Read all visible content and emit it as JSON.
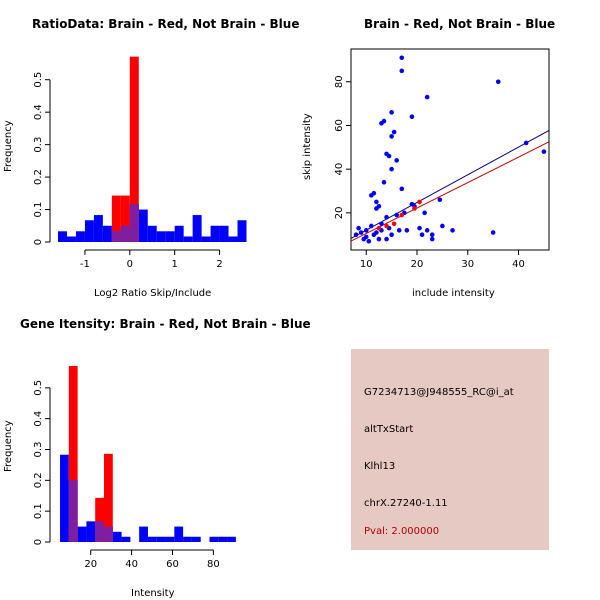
{
  "colors": {
    "red": "#ff0000",
    "blue": "#0000ff",
    "overlap": "#7f1f9f",
    "reg_red": "#cc0000",
    "reg_blue": "#000080",
    "info_bg": "#e6c9c2",
    "pval": "#b0000a"
  },
  "chart_data": [
    {
      "id": "ratio_hist",
      "type": "bar",
      "title": "RatioData: Brain - Red, Not Brain - Blue",
      "xlabel": "Log2 Ratio Skip/Include",
      "ylabel": "Frequency",
      "xlim": [
        -1.6,
        2.5
      ],
      "ylim": [
        0,
        0.57
      ],
      "xticks": [
        -1,
        0,
        1,
        2
      ],
      "yticks": [
        0.0,
        0.1,
        0.2,
        0.3,
        0.4,
        0.5
      ],
      "bin_width": 0.2,
      "series": [
        {
          "name": "Not Brain",
          "color": "blue",
          "start": -1.6,
          "values": [
            0.033,
            0.017,
            0.033,
            0.067,
            0.083,
            0.05,
            0.033,
            0.05,
            0.117,
            0.1,
            0.05,
            0.033,
            0.033,
            0.05,
            0.017,
            0.083,
            0.017,
            0.05,
            0.05,
            0.017,
            0.067
          ]
        },
        {
          "name": "Brain",
          "color": "red",
          "start": -0.4,
          "values": [
            0.143,
            0.143,
            0.571
          ]
        }
      ]
    },
    {
      "id": "scatter",
      "type": "scatter",
      "title": "Brain - Red, Not Brain - Blue",
      "xlabel": "include intensity",
      "ylabel": "skip intensity",
      "xlim": [
        7,
        46
      ],
      "ylim": [
        3,
        95
      ],
      "xticks": [
        10,
        20,
        30,
        40
      ],
      "yticks": [
        20,
        40,
        60,
        80
      ],
      "blue_points": [
        [
          8,
          10
        ],
        [
          8.5,
          13
        ],
        [
          9,
          11
        ],
        [
          9.5,
          8
        ],
        [
          10,
          12
        ],
        [
          10,
          9
        ],
        [
          10.5,
          7
        ],
        [
          11,
          14
        ],
        [
          11,
          28
        ],
        [
          11.5,
          29
        ],
        [
          11.5,
          10
        ],
        [
          12,
          11
        ],
        [
          12,
          25
        ],
        [
          12,
          22
        ],
        [
          12.5,
          8
        ],
        [
          12.5,
          23
        ],
        [
          13,
          12
        ],
        [
          13,
          15
        ],
        [
          13,
          61
        ],
        [
          13.5,
          62
        ],
        [
          13.5,
          34
        ],
        [
          14,
          47
        ],
        [
          14,
          18
        ],
        [
          14,
          8
        ],
        [
          14.5,
          46
        ],
        [
          14.5,
          13
        ],
        [
          15,
          10
        ],
        [
          15,
          66
        ],
        [
          15,
          55
        ],
        [
          15,
          40
        ],
        [
          15.5,
          57
        ],
        [
          16,
          19
        ],
        [
          16,
          44
        ],
        [
          16.5,
          12
        ],
        [
          17,
          91
        ],
        [
          17,
          85
        ],
        [
          17,
          31
        ],
        [
          17.5,
          20
        ],
        [
          18,
          12
        ],
        [
          19,
          24
        ],
        [
          19,
          64
        ],
        [
          19.5,
          23
        ],
        [
          20.5,
          13
        ],
        [
          21,
          10
        ],
        [
          21.5,
          20
        ],
        [
          22,
          73
        ],
        [
          22,
          12
        ],
        [
          23,
          10
        ],
        [
          23,
          8
        ],
        [
          24.5,
          26
        ],
        [
          25,
          14
        ],
        [
          27,
          12
        ],
        [
          35,
          11
        ],
        [
          36,
          80
        ],
        [
          41.5,
          52
        ],
        [
          45,
          48
        ]
      ],
      "red_points": [
        [
          12.5,
          13
        ],
        [
          14,
          14
        ],
        [
          15.5,
          15
        ],
        [
          17,
          19
        ],
        [
          19.5,
          22
        ],
        [
          20.5,
          25
        ]
      ],
      "blue_line": [
        [
          7,
          8.3
        ],
        [
          46,
          57.7
        ]
      ],
      "red_line": [
        [
          7,
          7.1
        ],
        [
          46,
          52.5
        ]
      ]
    },
    {
      "id": "intensity_hist",
      "type": "bar",
      "title": "Gene Itensity: Brain - Red, Not Brain - Blue",
      "xlabel": "Intensity",
      "ylabel": "Frequency",
      "xlim": [
        4,
        94
      ],
      "ylim": [
        0,
        0.6
      ],
      "xticks": [
        20,
        40,
        60,
        80
      ],
      "yticks": [
        0.0,
        0.1,
        0.2,
        0.3,
        0.4,
        0.5
      ],
      "bin_width": 4.3,
      "series": [
        {
          "name": "Not Brain",
          "color": "blue",
          "start": 5,
          "values": [
            0.283,
            0.2,
            0.05,
            0.067,
            0.067,
            0.05,
            0.033,
            0.017,
            0.0,
            0.05,
            0.017,
            0.017,
            0.017,
            0.05,
            0.017,
            0.017,
            0.0,
            0.017,
            0.017,
            0.017
          ]
        },
        {
          "name": "Brain",
          "color": "red",
          "start": 9.3,
          "values": [
            0.571,
            0.0,
            0.0,
            0.143,
            0.286
          ]
        }
      ]
    }
  ],
  "info": {
    "probe": "G7234713@J948555_RC@i_at",
    "event": "altTxStart",
    "gene": "Klhl13",
    "location": "chrX.27240-1.11",
    "pval": "Pval: 2.000000"
  }
}
